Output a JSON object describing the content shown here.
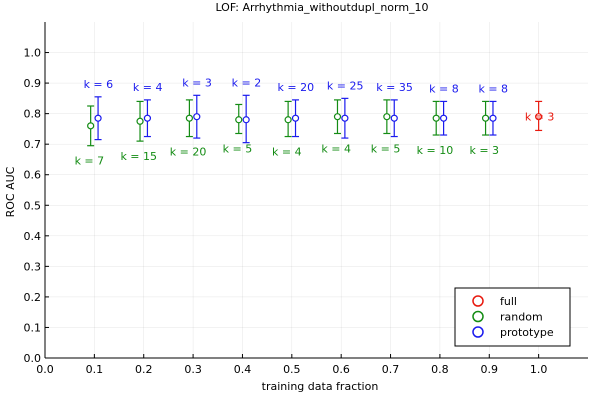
{
  "chart_data": {
    "type": "scatter",
    "title": "LOF: Arrhythmia_withoutdupl_norm_10",
    "xlabel": "training data fraction",
    "ylabel": "ROC AUC",
    "xlim": [
      0.0,
      1.1
    ],
    "ylim": [
      0.0,
      1.1
    ],
    "xticks": [
      "0.0",
      "0.1",
      "0.2",
      "0.3",
      "0.4",
      "0.5",
      "0.6",
      "0.7",
      "0.8",
      "0.9",
      "1.0"
    ],
    "yticks": [
      "0.0",
      "0.1",
      "0.2",
      "0.3",
      "0.4",
      "0.5",
      "0.6",
      "0.7",
      "0.8",
      "0.9",
      "1.0"
    ],
    "grid": true,
    "legend_position": "bottom-right",
    "series": [
      {
        "name": "full",
        "color": "#e8190e",
        "points": [
          {
            "x": 1.0,
            "y": 0.79,
            "lo": 0.745,
            "hi": 0.84,
            "label": "k = 3"
          }
        ]
      },
      {
        "name": "random",
        "color": "#148c14",
        "points": [
          {
            "x": 0.1,
            "y": 0.76,
            "lo": 0.695,
            "hi": 0.825,
            "label": "k = 7"
          },
          {
            "x": 0.2,
            "y": 0.775,
            "lo": 0.71,
            "hi": 0.84,
            "label": "k = 15"
          },
          {
            "x": 0.3,
            "y": 0.785,
            "lo": 0.725,
            "hi": 0.845,
            "label": "k = 20"
          },
          {
            "x": 0.4,
            "y": 0.78,
            "lo": 0.735,
            "hi": 0.83,
            "label": "k = 5"
          },
          {
            "x": 0.5,
            "y": 0.78,
            "lo": 0.725,
            "hi": 0.84,
            "label": "k = 4"
          },
          {
            "x": 0.6,
            "y": 0.79,
            "lo": 0.735,
            "hi": 0.845,
            "label": "k = 4"
          },
          {
            "x": 0.7,
            "y": 0.79,
            "lo": 0.735,
            "hi": 0.845,
            "label": "k = 5"
          },
          {
            "x": 0.8,
            "y": 0.785,
            "lo": 0.73,
            "hi": 0.84,
            "label": "k = 10"
          },
          {
            "x": 0.9,
            "y": 0.785,
            "lo": 0.73,
            "hi": 0.84,
            "label": "k = 3"
          }
        ]
      },
      {
        "name": "prototype",
        "color": "#1a1aee",
        "points": [
          {
            "x": 0.1,
            "y": 0.785,
            "lo": 0.715,
            "hi": 0.855,
            "label": "k = 6"
          },
          {
            "x": 0.2,
            "y": 0.785,
            "lo": 0.725,
            "hi": 0.845,
            "label": "k = 4"
          },
          {
            "x": 0.3,
            "y": 0.79,
            "lo": 0.72,
            "hi": 0.86,
            "label": "k = 3"
          },
          {
            "x": 0.4,
            "y": 0.78,
            "lo": 0.705,
            "hi": 0.86,
            "label": "k = 2"
          },
          {
            "x": 0.5,
            "y": 0.785,
            "lo": 0.725,
            "hi": 0.845,
            "label": "k = 20"
          },
          {
            "x": 0.6,
            "y": 0.785,
            "lo": 0.72,
            "hi": 0.85,
            "label": "k = 25"
          },
          {
            "x": 0.7,
            "y": 0.785,
            "lo": 0.725,
            "hi": 0.845,
            "label": "k = 35"
          },
          {
            "x": 0.8,
            "y": 0.785,
            "lo": 0.73,
            "hi": 0.84,
            "label": "k = 8"
          },
          {
            "x": 0.9,
            "y": 0.785,
            "lo": 0.73,
            "hi": 0.84,
            "label": "k = 8"
          }
        ]
      }
    ]
  }
}
